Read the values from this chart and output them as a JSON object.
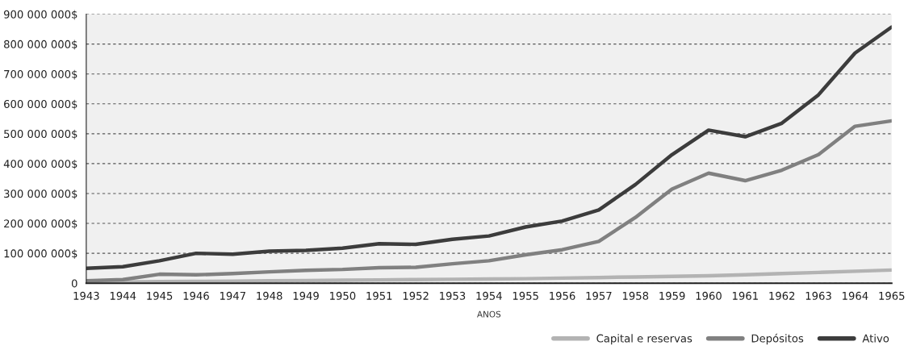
{
  "chart_data": {
    "type": "line",
    "xlabel": "ANOS",
    "categories": [
      "1943",
      "1944",
      "1945",
      "1946",
      "1947",
      "1948",
      "1949",
      "1950",
      "1951",
      "1952",
      "1953",
      "1954",
      "1955",
      "1956",
      "1957",
      "1958",
      "1959",
      "1960",
      "1961",
      "1962",
      "1963",
      "1964",
      "1965"
    ],
    "series": [
      {
        "name": "Capital e reservas",
        "color": "#b3b3b3",
        "values": [
          3000000,
          4000000,
          5000000,
          6000000,
          7000000,
          8000000,
          9000000,
          10000000,
          11000000,
          12000000,
          13000000,
          14000000,
          15000000,
          17000000,
          19000000,
          21000000,
          23000000,
          25000000,
          28000000,
          32000000,
          36000000,
          40000000,
          44000000
        ]
      },
      {
        "name": "Depósitos",
        "color": "#808080",
        "values": [
          8000000,
          12000000,
          30000000,
          28000000,
          32000000,
          38000000,
          43000000,
          46000000,
          52000000,
          53000000,
          65000000,
          75000000,
          95000000,
          112000000,
          140000000,
          220000000,
          315000000,
          368000000,
          343000000,
          378000000,
          430000000,
          525000000,
          543000000
        ]
      },
      {
        "name": "Ativo",
        "color": "#3c3c3c",
        "values": [
          50000000,
          55000000,
          75000000,
          100000000,
          97000000,
          107000000,
          110000000,
          117000000,
          132000000,
          130000000,
          147000000,
          158000000,
          188000000,
          208000000,
          245000000,
          330000000,
          430000000,
          512000000,
          490000000,
          535000000,
          630000000,
          770000000,
          857000000
        ]
      }
    ],
    "ylim": [
      0,
      900000000
    ],
    "yticks": [
      0,
      {
        "value": 100000000,
        "label": "100 000 000$"
      },
      {
        "value": 200000000,
        "label": "200 000 000$"
      },
      {
        "value": 300000000,
        "label": "300 000 000$"
      },
      {
        "value": 400000000,
        "label": "400 000 000$"
      },
      {
        "value": 500000000,
        "label": "500 000 000$"
      },
      {
        "value": 600000000,
        "label": "600 000 000$"
      },
      {
        "value": 700000000,
        "label": "700 000 000$"
      },
      {
        "value": 800000000,
        "label": "800 000 000$"
      },
      {
        "value": 900000000,
        "label": "900 000 000$"
      }
    ],
    "grid": "y",
    "legend": "bottom right",
    "line_style": "solid",
    "marker": "none"
  }
}
